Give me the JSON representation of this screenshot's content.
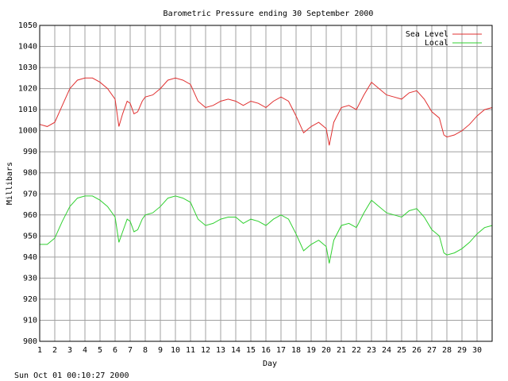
{
  "chart_data": {
    "type": "line",
    "title": "Barometric Pressure ending 30 September 2000",
    "xlabel": "Day",
    "ylabel": "Millibars",
    "footer": "Sun Oct 01 00:10:27 2000",
    "xlim": [
      1,
      31
    ],
    "ylim": [
      900,
      1050
    ],
    "grid": true,
    "legend_position": "top-right",
    "x_ticks": [
      "1",
      "2",
      "3",
      "4",
      "5",
      "6",
      "7",
      "8",
      "9",
      "10",
      "11",
      "12",
      "13",
      "14",
      "15",
      "16",
      "17",
      "18",
      "19",
      "20",
      "21",
      "22",
      "23",
      "24",
      "25",
      "26",
      "27",
      "28",
      "29",
      "30"
    ],
    "y_ticks": [
      "900",
      "910",
      "920",
      "930",
      "940",
      "950",
      "960",
      "970",
      "980",
      "990",
      "1000",
      "1010",
      "1020",
      "1030",
      "1040",
      "1050"
    ],
    "series": [
      {
        "name": "Sea Level",
        "color": "#e03030",
        "x": [
          1.0,
          1.5,
          2.0,
          2.5,
          3.0,
          3.5,
          4.0,
          4.5,
          5.0,
          5.5,
          6.0,
          6.25,
          6.5,
          6.8,
          7.0,
          7.25,
          7.5,
          7.8,
          8.0,
          8.5,
          9.0,
          9.5,
          10.0,
          10.5,
          11.0,
          11.5,
          12.0,
          12.5,
          13.0,
          13.5,
          14.0,
          14.5,
          15.0,
          15.5,
          16.0,
          16.5,
          17.0,
          17.5,
          18.0,
          18.5,
          19.0,
          19.5,
          20.0,
          20.2,
          20.5,
          21.0,
          21.5,
          22.0,
          22.5,
          23.0,
          23.5,
          24.0,
          24.5,
          25.0,
          25.5,
          26.0,
          26.5,
          27.0,
          27.5,
          27.8,
          28.0,
          28.5,
          29.0,
          29.5,
          30.0,
          30.5,
          31.0
        ],
        "y": [
          1003,
          1002,
          1004,
          1012,
          1020,
          1024,
          1025,
          1025,
          1023,
          1020,
          1015,
          1002,
          1008,
          1014,
          1013,
          1008,
          1009,
          1014,
          1016,
          1017,
          1020,
          1024,
          1025,
          1024,
          1022,
          1014,
          1011,
          1012,
          1014,
          1015,
          1014,
          1012,
          1014,
          1013,
          1011,
          1014,
          1016,
          1014,
          1007,
          999,
          1002,
          1004,
          1001,
          993,
          1004,
          1011,
          1012,
          1010,
          1017,
          1023,
          1020,
          1017,
          1016,
          1015,
          1018,
          1019,
          1015,
          1009,
          1006,
          998,
          997,
          998,
          1000,
          1003,
          1007,
          1010,
          1011
        ]
      },
      {
        "name": "Local",
        "color": "#30d030",
        "x": [
          1.0,
          1.5,
          2.0,
          2.5,
          3.0,
          3.5,
          4.0,
          4.5,
          5.0,
          5.5,
          6.0,
          6.25,
          6.5,
          6.8,
          7.0,
          7.25,
          7.5,
          7.8,
          8.0,
          8.5,
          9.0,
          9.5,
          10.0,
          10.5,
          11.0,
          11.5,
          12.0,
          12.5,
          13.0,
          13.5,
          14.0,
          14.5,
          15.0,
          15.5,
          16.0,
          16.5,
          17.0,
          17.5,
          18.0,
          18.5,
          19.0,
          19.5,
          20.0,
          20.2,
          20.5,
          21.0,
          21.5,
          22.0,
          22.5,
          23.0,
          23.5,
          24.0,
          24.5,
          25.0,
          25.5,
          26.0,
          26.5,
          27.0,
          27.5,
          27.8,
          28.0,
          28.5,
          29.0,
          29.5,
          30.0,
          30.5,
          31.0
        ],
        "y": [
          946,
          946,
          949,
          957,
          964,
          968,
          969,
          969,
          967,
          964,
          959,
          947,
          952,
          958,
          957,
          952,
          953,
          958,
          960,
          961,
          964,
          968,
          969,
          968,
          966,
          958,
          955,
          956,
          958,
          959,
          959,
          956,
          958,
          957,
          955,
          958,
          960,
          958,
          951,
          943,
          946,
          948,
          945,
          937,
          948,
          955,
          956,
          954,
          961,
          967,
          964,
          961,
          960,
          959,
          962,
          963,
          959,
          953,
          950,
          942,
          941,
          942,
          944,
          947,
          951,
          954,
          955
        ]
      }
    ]
  }
}
